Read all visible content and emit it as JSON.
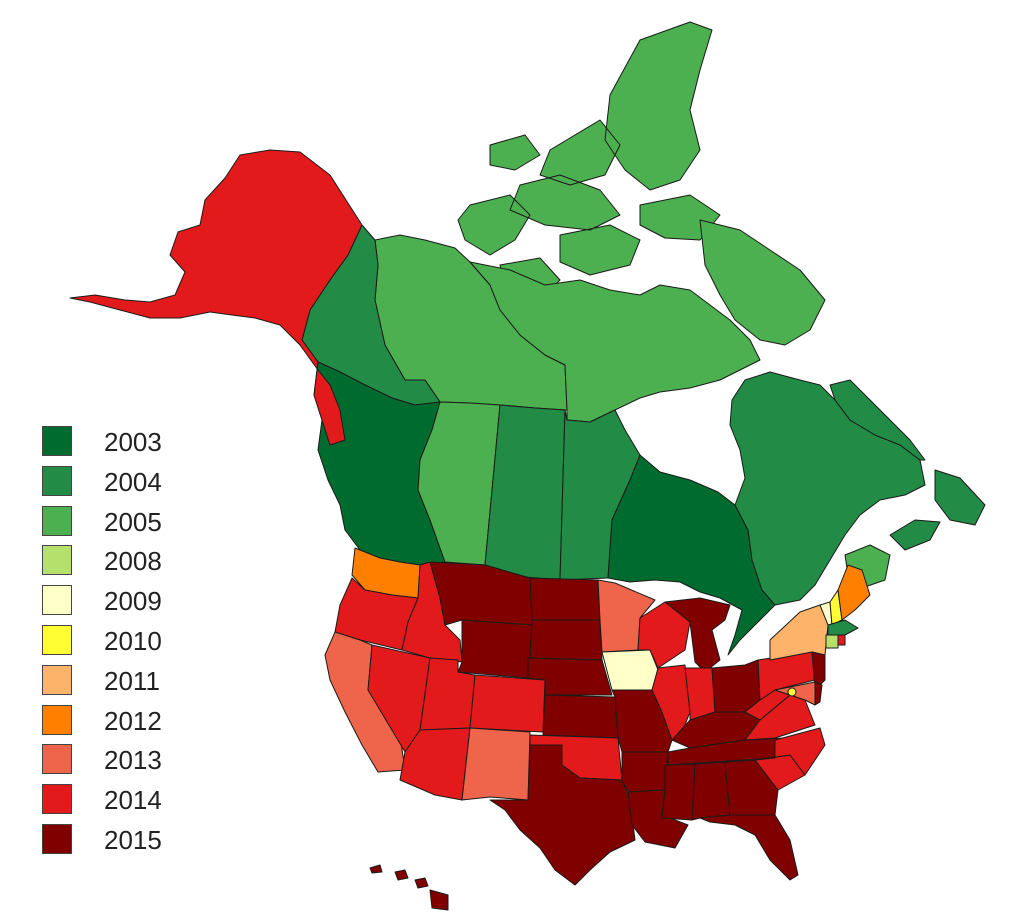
{
  "legend": [
    {
      "year": "2003",
      "color": "#006b2e"
    },
    {
      "year": "2004",
      "color": "#228b45"
    },
    {
      "year": "2005",
      "color": "#4caf50"
    },
    {
      "year": "2008",
      "color": "#b5e06c"
    },
    {
      "year": "2009",
      "color": "#ffffc8"
    },
    {
      "year": "2010",
      "color": "#ffff33"
    },
    {
      "year": "2011",
      "color": "#fdb46a"
    },
    {
      "year": "2012",
      "color": "#ff8000"
    },
    {
      "year": "2013",
      "color": "#ef654c"
    },
    {
      "year": "2014",
      "color": "#e31a1c"
    },
    {
      "year": "2015",
      "color": "#800000"
    }
  ],
  "regions": [
    {
      "name": "alaska",
      "year": "2014"
    },
    {
      "name": "yukon",
      "year": "2004"
    },
    {
      "name": "northwest-territories",
      "year": "2005"
    },
    {
      "name": "nunavut",
      "year": "2005"
    },
    {
      "name": "british-columbia",
      "year": "2003"
    },
    {
      "name": "alberta",
      "year": "2005"
    },
    {
      "name": "saskatchewan",
      "year": "2004"
    },
    {
      "name": "manitoba",
      "year": "2004"
    },
    {
      "name": "ontario",
      "year": "2003"
    },
    {
      "name": "quebec",
      "year": "2004"
    },
    {
      "name": "newfoundland-labrador",
      "year": "2004"
    },
    {
      "name": "new-brunswick",
      "year": "2005"
    },
    {
      "name": "nova-scotia",
      "year": "2004"
    },
    {
      "name": "washington",
      "year": "2012"
    },
    {
      "name": "oregon",
      "year": "2014"
    },
    {
      "name": "california",
      "year": "2013"
    },
    {
      "name": "nevada",
      "year": "2014"
    },
    {
      "name": "idaho",
      "year": "2014"
    },
    {
      "name": "montana",
      "year": "2015"
    },
    {
      "name": "wyoming",
      "year": "2015"
    },
    {
      "name": "utah",
      "year": "2014"
    },
    {
      "name": "arizona",
      "year": "2014"
    },
    {
      "name": "colorado",
      "year": "2014"
    },
    {
      "name": "new-mexico",
      "year": "2013"
    },
    {
      "name": "north-dakota",
      "year": "2015"
    },
    {
      "name": "south-dakota",
      "year": "2015"
    },
    {
      "name": "nebraska",
      "year": "2015"
    },
    {
      "name": "kansas",
      "year": "2015"
    },
    {
      "name": "oklahoma",
      "year": "2014"
    },
    {
      "name": "texas",
      "year": "2015"
    },
    {
      "name": "minnesota",
      "year": "2013"
    },
    {
      "name": "iowa",
      "year": "2009"
    },
    {
      "name": "missouri",
      "year": "2015"
    },
    {
      "name": "arkansas",
      "year": "2015"
    },
    {
      "name": "louisiana",
      "year": "2015"
    },
    {
      "name": "wisconsin",
      "year": "2014"
    },
    {
      "name": "illinois",
      "year": "2014"
    },
    {
      "name": "michigan",
      "year": "2015"
    },
    {
      "name": "indiana",
      "year": "2014"
    },
    {
      "name": "ohio",
      "year": "2015"
    },
    {
      "name": "kentucky",
      "year": "2015"
    },
    {
      "name": "tennessee",
      "year": "2015"
    },
    {
      "name": "mississippi",
      "year": "2015"
    },
    {
      "name": "alabama",
      "year": "2015"
    },
    {
      "name": "georgia",
      "year": "2015"
    },
    {
      "name": "florida",
      "year": "2015"
    },
    {
      "name": "south-carolina",
      "year": "2014"
    },
    {
      "name": "north-carolina",
      "year": "2014"
    },
    {
      "name": "virginia",
      "year": "2014"
    },
    {
      "name": "west-virginia",
      "year": "2014"
    },
    {
      "name": "pennsylvania",
      "year": "2014"
    },
    {
      "name": "new-york",
      "year": "2011"
    },
    {
      "name": "new-jersey",
      "year": "2015"
    },
    {
      "name": "maryland",
      "year": "2013"
    },
    {
      "name": "delaware",
      "year": "2015"
    },
    {
      "name": "district-of-columbia",
      "year": "2010"
    },
    {
      "name": "vermont",
      "year": "2009"
    },
    {
      "name": "new-hampshire",
      "year": "2010"
    },
    {
      "name": "maine",
      "year": "2012"
    },
    {
      "name": "massachusetts",
      "year": "2004"
    },
    {
      "name": "connecticut",
      "year": "2008"
    },
    {
      "name": "rhode-island",
      "year": "2014"
    },
    {
      "name": "hawaii",
      "year": "2015"
    }
  ]
}
